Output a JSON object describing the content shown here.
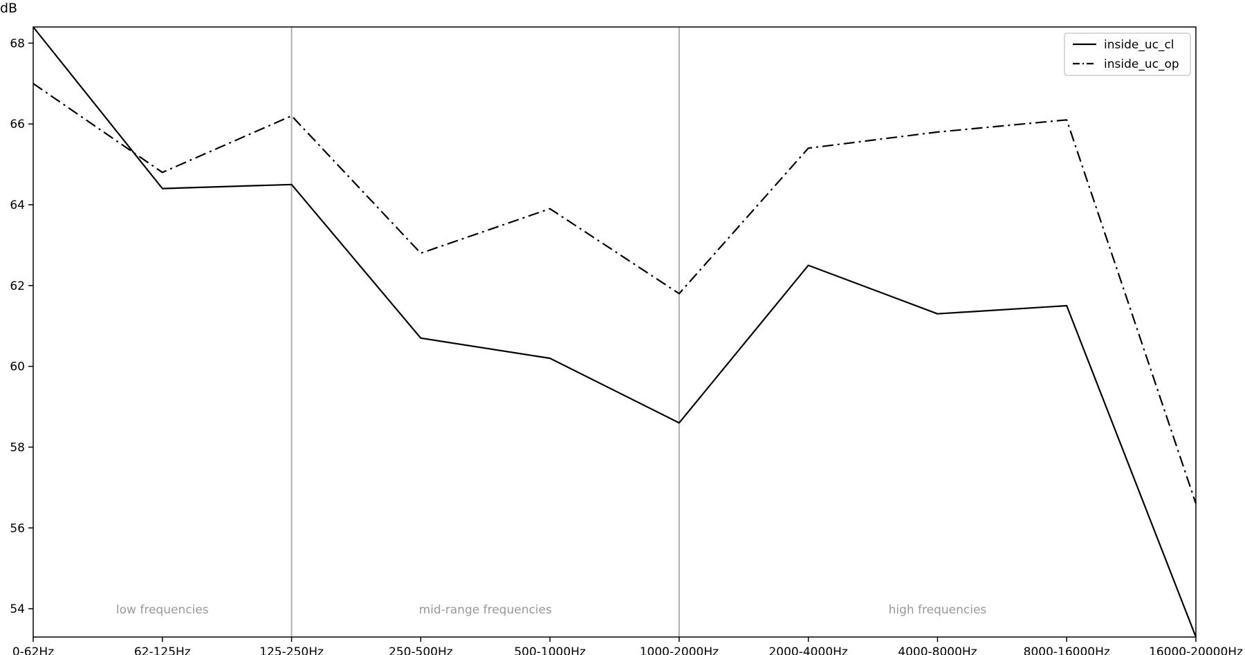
{
  "chart_data": {
    "type": "line",
    "ylabel": "dB",
    "xlabel": "",
    "ylim": [
      53.3,
      68.4
    ],
    "yticks": [
      54,
      56,
      58,
      60,
      62,
      64,
      66,
      68
    ],
    "grid": false,
    "legend_position": "top-right",
    "categories": [
      "0-62Hz",
      "62-125Hz",
      "125-250Hz",
      "250-500Hz",
      "500-1000Hz",
      "1000-2000Hz",
      "2000-4000Hz",
      "4000-8000Hz",
      "8000-16000Hz",
      "16000-20000Hz"
    ],
    "series": [
      {
        "name": "inside_uc_cl",
        "style": "solid",
        "values": [
          68.4,
          64.4,
          64.5,
          60.7,
          60.2,
          58.6,
          62.5,
          61.3,
          61.5,
          53.3
        ]
      },
      {
        "name": "inside_uc_op",
        "style": "dashdot",
        "values": [
          67.0,
          64.8,
          66.2,
          62.8,
          63.9,
          61.8,
          65.4,
          65.8,
          66.1,
          56.6
        ]
      }
    ],
    "bands": [
      {
        "label": "low frequencies",
        "from": 0,
        "to": 2
      },
      {
        "label": "mid-range frequencies",
        "from": 2,
        "to": 5
      },
      {
        "label": "high frequencies",
        "from": 5,
        "to": 9
      }
    ],
    "band_boundaries": [
      2,
      5
    ],
    "colors": {
      "line": "#000000",
      "boundary": "#b0b0b0",
      "band_label": "#999999"
    }
  }
}
